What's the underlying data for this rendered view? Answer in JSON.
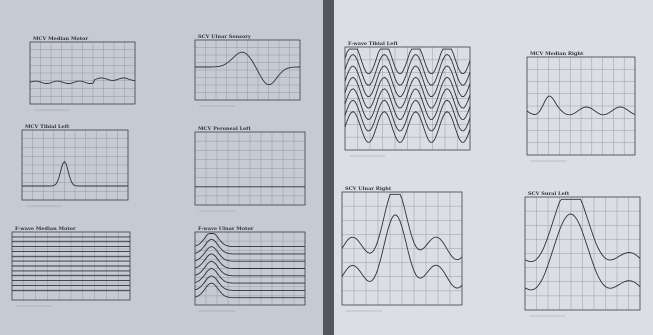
{
  "pages": [
    {
      "panels": [
        {
          "title": "MCV Median Motor"
        },
        {
          "title": "SCV Ulnar Sensory"
        },
        {
          "title": "MCV Tibial Left"
        },
        {
          "title": "MCV Peroneal Left"
        },
        {
          "title": "F-wave Median Motor"
        },
        {
          "title": "F-wave Ulnar Motor"
        }
      ]
    },
    {
      "panels": [
        {
          "title": "F-wave Tibial Left"
        },
        {
          "title": "MCV Median Right"
        },
        {
          "title": "SCV Ulnar Right"
        },
        {
          "title": "SCV Sural Left"
        }
      ]
    }
  ]
}
